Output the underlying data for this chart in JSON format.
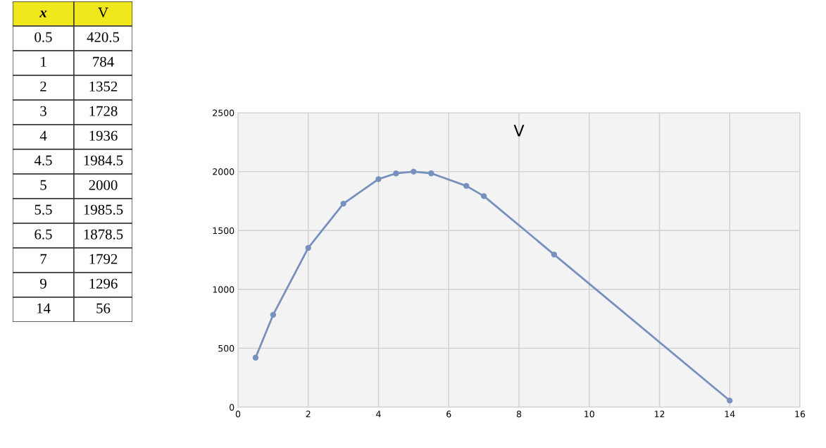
{
  "chart_data": [
    {
      "type": "other",
      "annotations": [
        "x",
        "V",
        "0.5",
        "420.5",
        "1",
        "784",
        "2",
        "1352",
        "3",
        "1728",
        "4",
        "1936",
        "4.5",
        "1984.5",
        "5",
        "2000",
        "5.5",
        "1985.5",
        "6.5",
        "1878.5",
        "7",
        "1792",
        "9",
        "1296",
        "14",
        "56"
      ]
    },
    {
      "type": "line",
      "title": "V",
      "x": [
        0.5,
        1,
        2,
        3,
        4,
        4.5,
        5,
        5.5,
        6.5,
        7,
        9,
        14
      ],
      "series": [
        {
          "color": "#7890bd",
          "values": [
            420.5,
            784,
            1352,
            1728,
            1936,
            1984.5,
            2000,
            1985.5,
            1878.5,
            1792,
            1296,
            56
          ]
        }
      ],
      "xlim": [
        0,
        16
      ],
      "xticks": [
        0,
        2,
        4,
        6,
        8,
        10,
        12,
        14,
        16
      ],
      "ylim": [
        0,
        2500
      ],
      "yticks": [
        0,
        500,
        1000,
        1500,
        2000,
        2500
      ],
      "grid": true,
      "marker": "circle",
      "line_style": "solid"
    }
  ]
}
